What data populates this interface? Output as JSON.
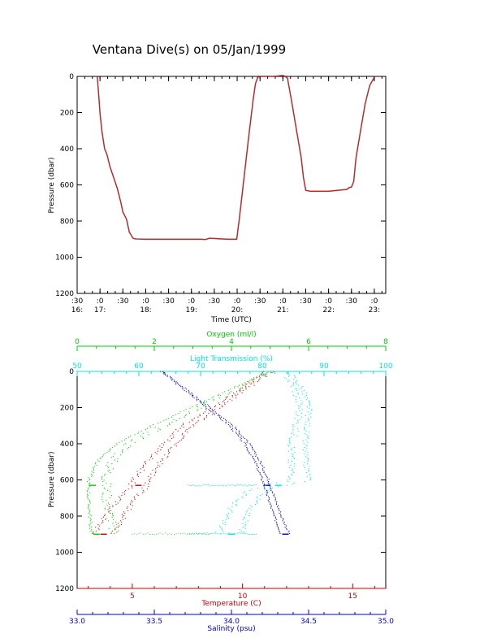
{
  "title": "Ventana Dive(s) on 05/Jan/1999",
  "colors": {
    "axis": "#000000",
    "depth_trace": "#ff0000",
    "depth_trace_dark": "#000000",
    "temperature": "#cc0000",
    "salinity": "#0000cc",
    "oxygen": "#00cc00",
    "transmission": "#00e5e5"
  },
  "chart_data": [
    {
      "type": "line",
      "name_key": "time-pressure",
      "xlabel": "Time (UTC)",
      "ylabel": "Pressure (dbar)",
      "xlim": [
        16.5,
        23.25
      ],
      "ylim": [
        1200,
        0
      ],
      "yticks": [
        0,
        200,
        400,
        600,
        800,
        1000,
        1200
      ],
      "xticks": [
        {
          "t": 16.5,
          "top": ":30",
          "bottom": "16:"
        },
        {
          "t": 17.0,
          "top": ":0",
          "bottom": "17:"
        },
        {
          "t": 17.5,
          "top": ":30",
          "bottom": ""
        },
        {
          "t": 18.0,
          "top": ":0",
          "bottom": "18:"
        },
        {
          "t": 18.5,
          "top": ":30",
          "bottom": ""
        },
        {
          "t": 19.0,
          "top": ":0",
          "bottom": "19:"
        },
        {
          "t": 19.5,
          "top": ":30",
          "bottom": ""
        },
        {
          "t": 20.0,
          "top": ":0",
          "bottom": "20:"
        },
        {
          "t": 20.5,
          "top": ":30",
          "bottom": ""
        },
        {
          "t": 21.0,
          "top": ":0",
          "bottom": "21:"
        },
        {
          "t": 21.5,
          "top": ":30",
          "bottom": ""
        },
        {
          "t": 22.0,
          "top": ":0",
          "bottom": "22:"
        },
        {
          "t": 22.5,
          "top": ":30",
          "bottom": ""
        },
        {
          "t": 23.0,
          "top": ":0",
          "bottom": "23:"
        }
      ],
      "series": [
        {
          "x": [
            16.94,
            16.97,
            17.0,
            17.04,
            17.1,
            17.15,
            17.22,
            17.3,
            17.38,
            17.46,
            17.5,
            17.58,
            17.64,
            17.72,
            17.76,
            17.8,
            18.0,
            18.5,
            19.0,
            19.2,
            19.3,
            19.4,
            19.6,
            19.8,
            19.99,
            20.05,
            20.15,
            20.25,
            20.35,
            20.4,
            20.45,
            20.5,
            20.8,
            21.0,
            21.05,
            21.1,
            21.2,
            21.3,
            21.4,
            21.45,
            21.5,
            21.6,
            21.8,
            22.0,
            22.2,
            22.4,
            22.45,
            22.5,
            22.55,
            22.6,
            22.7,
            22.8,
            22.9,
            23.0
          ],
          "y": [
            0,
            100,
            200,
            300,
            400,
            430,
            500,
            560,
            620,
            700,
            750,
            790,
            860,
            895,
            898,
            899,
            900,
            900,
            900,
            900,
            902,
            895,
            898,
            900,
            900,
            780,
            560,
            340,
            130,
            40,
            5,
            0,
            0,
            -5,
            0,
            10,
            150,
            300,
            450,
            560,
            630,
            635,
            635,
            635,
            630,
            625,
            615,
            612,
            580,
            450,
            300,
            150,
            50,
            5
          ]
        }
      ]
    },
    {
      "type": "scatter",
      "name_key": "profiles",
      "ylabel": "Pressure (dbar)",
      "ylim": [
        1200,
        0
      ],
      "yticks": [
        0,
        200,
        400,
        600,
        800,
        1000,
        1200
      ],
      "axes": {
        "oxygen": {
          "label": "Oxygen (ml/l)",
          "lim": [
            0,
            8
          ],
          "ticks": [
            0,
            2,
            4,
            6,
            8
          ]
        },
        "transmission": {
          "label": "Light Transmission (%)",
          "lim": [
            50,
            100
          ],
          "ticks": [
            50,
            60,
            70,
            80,
            90,
            100
          ]
        },
        "temperature": {
          "label": "Temperature (C)",
          "lim": [
            2.5,
            16.5
          ],
          "ticks": [
            5,
            10,
            15
          ]
        },
        "salinity": {
          "label": "Salinity (psu)",
          "lim": [
            33.0,
            35.0
          ],
          "ticks": [
            33.0,
            33.5,
            34.0,
            34.5,
            35.0
          ]
        }
      },
      "series": [
        {
          "name": "Temperature",
          "pressure": [
            0,
            100,
            200,
            300,
            400,
            500,
            600,
            650,
            700,
            800,
            900
          ],
          "values": [
            11.2,
            10.0,
            8.8,
            7.5,
            6.7,
            6.0,
            5.4,
            5.2,
            4.8,
            4.2,
            3.7
          ]
        },
        {
          "name": "Salinity",
          "pressure": [
            0,
            100,
            200,
            300,
            400,
            500,
            600,
            650,
            700,
            800,
            900
          ],
          "values": [
            33.55,
            33.7,
            33.85,
            34.0,
            34.1,
            34.17,
            34.22,
            34.24,
            34.26,
            34.3,
            34.35
          ]
        },
        {
          "name": "Oxygen",
          "pressure": [
            0,
            100,
            200,
            300,
            400,
            500,
            600,
            650,
            700,
            800,
            900
          ],
          "values": [
            5.0,
            4.0,
            3.0,
            2.0,
            1.1,
            0.6,
            0.4,
            0.4,
            0.4,
            0.45,
            0.5
          ]
        },
        {
          "name": "Light Transmission",
          "pressure": [
            0,
            100,
            200,
            300,
            400,
            500,
            600,
            650,
            700,
            800,
            900
          ],
          "values": [
            84,
            86,
            87,
            86.5,
            86,
            86,
            86.5,
            80,
            78,
            76,
            75
          ]
        }
      ]
    }
  ]
}
